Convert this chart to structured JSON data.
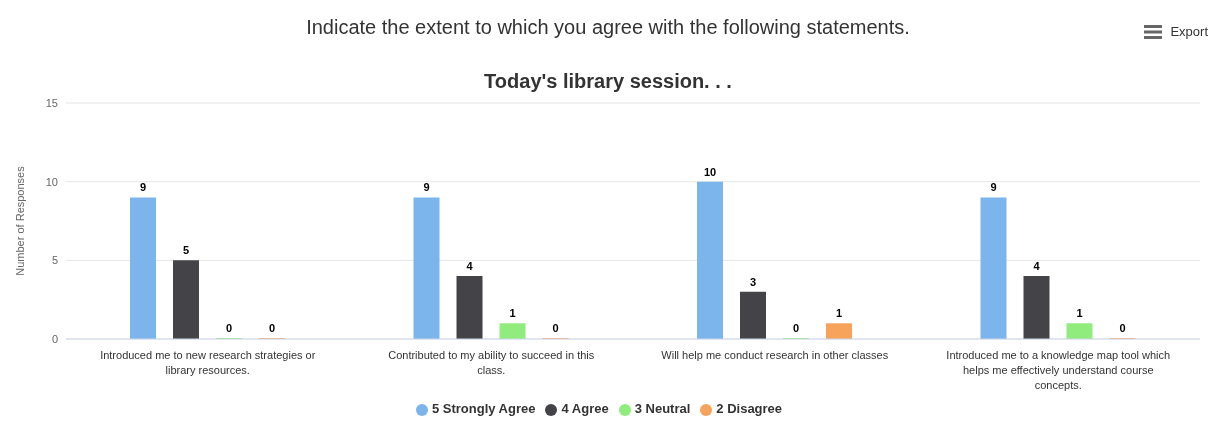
{
  "chart_data": {
    "type": "bar",
    "title": "Indicate the extent to which you agree with the following statements.",
    "subtitle": "Today's library session. . .",
    "ylabel": "Number of Responses",
    "categories": [
      "Introduced me to new research strategies or library resources.",
      "Contributed to my ability to succeed in this class.",
      "Will help me conduct research in other classes",
      "Introduced me to a knowledge map tool which helps me effectively understand course concepts."
    ],
    "series": [
      {
        "name": "5 Strongly Agree",
        "color": "#7cb5ec",
        "values": [
          9,
          9,
          10,
          9
        ]
      },
      {
        "name": "4 Agree",
        "color": "#434348",
        "values": [
          5,
          4,
          3,
          4
        ]
      },
      {
        "name": "3 Neutral",
        "color": "#90ed7d",
        "values": [
          0,
          1,
          0,
          1
        ]
      },
      {
        "name": "2 Disagree",
        "color": "#f7a35c",
        "values": [
          0,
          0,
          1,
          0
        ]
      }
    ],
    "ylim": [
      0,
      15
    ],
    "yticks": [
      0,
      5,
      10,
      15
    ],
    "grid": "y",
    "legend": "bottom",
    "data_labels": true,
    "annotations": [
      "Export"
    ]
  }
}
